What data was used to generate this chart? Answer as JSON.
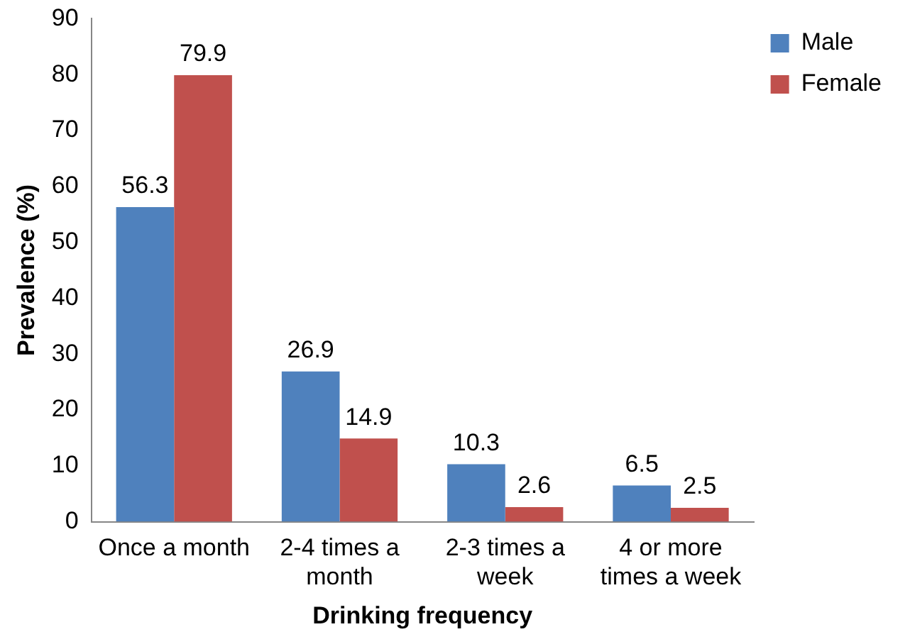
{
  "chart_data": {
    "type": "bar",
    "xlabel": "Drinking frequency",
    "ylabel": "Prevalence (%)",
    "categories": [
      "Once a month",
      "2-4 times a month",
      "2-3 times a week",
      "4 or more times a week"
    ],
    "series": [
      {
        "name": "Male",
        "color": "#4f81bd",
        "values": [
          56.3,
          26.9,
          10.3,
          6.5
        ]
      },
      {
        "name": "Female",
        "color": "#c0504d",
        "values": [
          79.9,
          14.9,
          2.6,
          2.5
        ]
      }
    ],
    "ylim": [
      0,
      90
    ],
    "yticks": [
      0,
      10,
      20,
      30,
      40,
      50,
      60,
      70,
      80,
      90
    ],
    "grid": false,
    "legend": "right",
    "data_labels": true
  }
}
